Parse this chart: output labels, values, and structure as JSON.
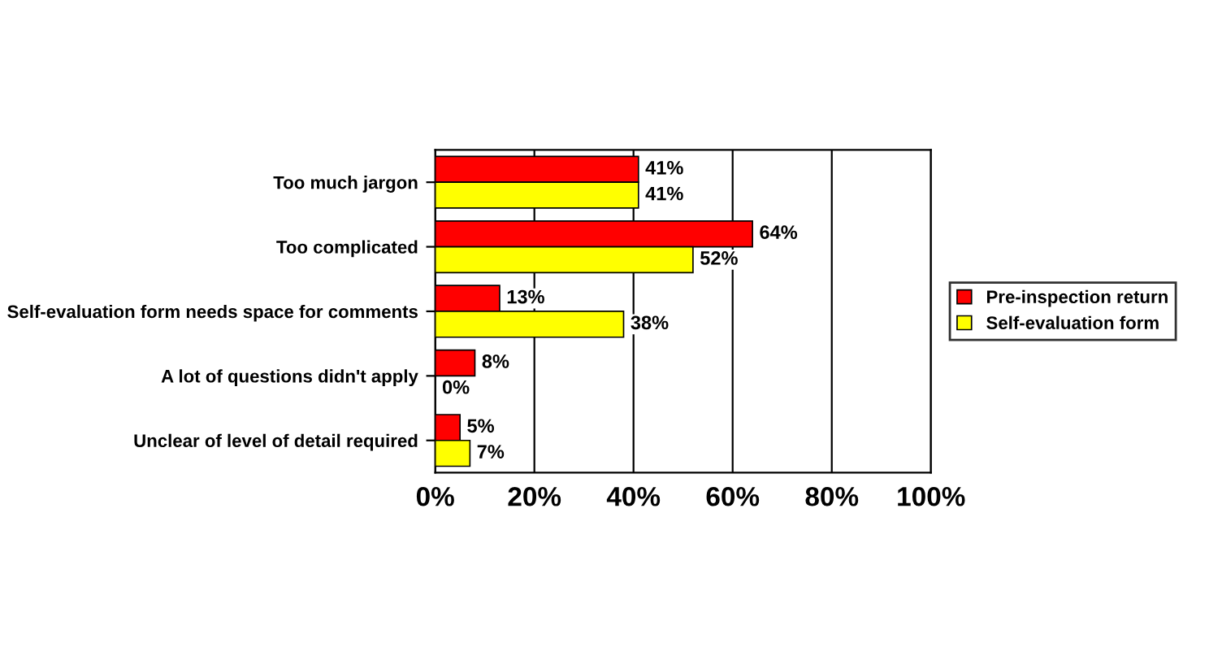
{
  "chart_data": {
    "type": "bar",
    "orientation": "horizontal",
    "categories": [
      "Too much jargon",
      "Too complicated",
      "Self-evaluation form needs space for comments",
      "A lot of questions didn't apply",
      "Unclear of level of detail required"
    ],
    "series": [
      {
        "name": "Pre-inspection return",
        "color": "#ff0000",
        "values": [
          41,
          64,
          13,
          8,
          5
        ],
        "value_labels": [
          "41%",
          "64%",
          "13%",
          "8%",
          "5%"
        ]
      },
      {
        "name": "Self-evaluation form",
        "color": "#ffff00",
        "values": [
          41,
          52,
          38,
          0,
          7
        ],
        "value_labels": [
          "41%",
          "52%",
          "38%",
          "0%",
          "7%"
        ]
      }
    ],
    "xlim": [
      0,
      100
    ],
    "xticks": [
      {
        "value": 0,
        "label": "0%"
      },
      {
        "value": 20,
        "label": "20%"
      },
      {
        "value": 40,
        "label": "40%"
      },
      {
        "value": 60,
        "label": "60%"
      },
      {
        "value": 80,
        "label": "80%"
      },
      {
        "value": 100,
        "label": "100%"
      }
    ],
    "grid": "x",
    "legend": "right"
  }
}
